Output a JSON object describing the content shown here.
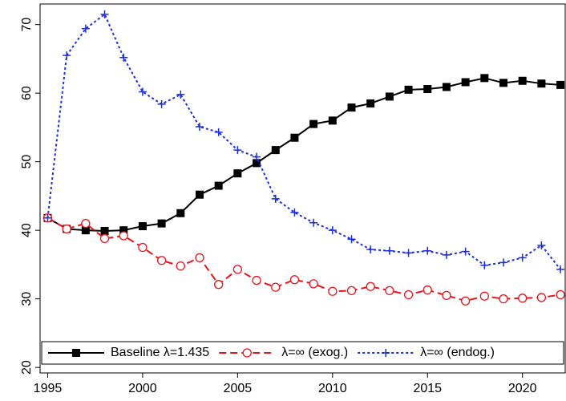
{
  "chart_data": {
    "type": "line",
    "x": [
      1995,
      1996,
      1997,
      1998,
      1999,
      2000,
      2001,
      2002,
      2003,
      2004,
      2005,
      2006,
      2007,
      2008,
      2009,
      2010,
      2011,
      2012,
      2013,
      2014,
      2015,
      2016,
      2017,
      2018,
      2019,
      2020,
      2021,
      2022
    ],
    "series": [
      {
        "name": "Baseline λ=1.435",
        "color": "#000000",
        "marker": "square",
        "dash": "solid",
        "values": [
          41.8,
          40.2,
          40.0,
          39.9,
          40.0,
          40.6,
          41.0,
          42.5,
          45.2,
          46.5,
          48.3,
          49.8,
          51.7,
          53.5,
          55.5,
          56.0,
          57.9,
          58.5,
          59.5,
          60.5,
          60.6,
          60.9,
          61.6,
          62.2,
          61.5,
          61.8,
          61.4,
          61.2
        ]
      },
      {
        "name": "λ=∞ (exog.)",
        "color": "#e8141c",
        "marker": "circle",
        "dash": "dashed",
        "values": [
          41.8,
          40.2,
          41.0,
          38.8,
          39.2,
          37.5,
          35.6,
          34.8,
          36.0,
          32.1,
          34.3,
          32.7,
          31.7,
          32.8,
          32.2,
          31.1,
          31.2,
          31.8,
          31.2,
          30.6,
          31.3,
          30.5,
          29.7,
          30.4,
          30.0,
          30.1,
          30.2,
          30.6
        ]
      },
      {
        "name": "λ=∞ (endog.)",
        "color": "#1a2ee0",
        "marker": "plus",
        "dash": "dotted",
        "values": [
          41.8,
          65.5,
          69.4,
          71.5,
          65.2,
          60.2,
          58.4,
          59.8,
          55.1,
          54.3,
          51.7,
          50.7,
          44.6,
          42.6,
          41.1,
          40.0,
          38.7,
          37.2,
          37.0,
          36.7,
          37.0,
          36.4,
          36.9,
          34.9,
          35.3,
          36.0,
          37.8,
          34.3
        ]
      }
    ],
    "xlim": [
      1994.6,
      2022.25
    ],
    "xticks": [
      1995,
      2000,
      2005,
      2010,
      2015,
      2020
    ],
    "ylim": [
      19.2,
      73
    ],
    "yticks": [
      20,
      30,
      40,
      50,
      60,
      70
    ],
    "legend": "bottom"
  }
}
